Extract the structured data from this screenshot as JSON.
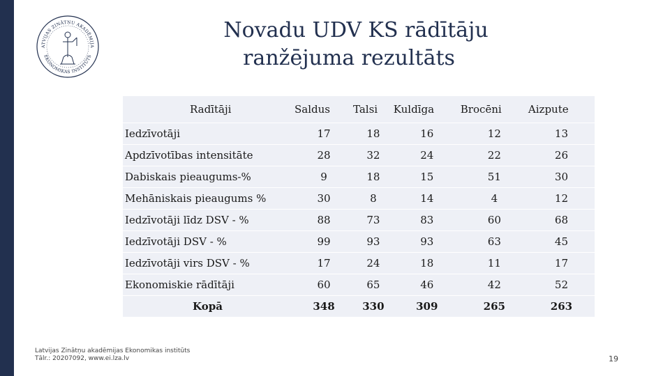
{
  "slide": {
    "title_line1": "Novadu UDV KS rādītāju",
    "title_line2": "ranžējuma rezultāts",
    "page_number": "19",
    "footer_line1": "Latvijas Zinātņu akadēmijas Ekonomikas institūts",
    "footer_line2": "Tālr.: 20207092, www.ei.lza.lv",
    "logo_text": "LATVIJAS ZINĀTŅU AKADĒMIJAS EKONOMIKAS INSTITŪTS",
    "accent_color": "#22304f",
    "row_shade": "#eef0f6"
  },
  "table": {
    "header_label": "Radītāji",
    "columns": [
      "Saldus",
      "Talsi",
      "Kuldīga",
      "Brocēni",
      "Aizpute"
    ],
    "rows": [
      {
        "label": "Iedzīvotāji",
        "values": [
          "17",
          "18",
          "16",
          "12",
          "13"
        ]
      },
      {
        "label": "Apdzīvotības intensitāte",
        "values": [
          "28",
          "32",
          "24",
          "22",
          "26"
        ]
      },
      {
        "label": "Dabiskais pieaugums-%",
        "values": [
          "9",
          "18",
          "15",
          "51",
          "30"
        ]
      },
      {
        "label": "Mehāniskais pieaugums %",
        "values": [
          "30",
          "8",
          "14",
          "4",
          "12"
        ]
      },
      {
        "label": "Iedzīvotāji līdz DSV - %",
        "values": [
          "88",
          "73",
          "83",
          "60",
          "68"
        ]
      },
      {
        "label": "Iedzīvotāji  DSV - %",
        "values": [
          "99",
          "93",
          "93",
          "63",
          "45"
        ]
      },
      {
        "label": "Iedzīvotāji virs DSV - %",
        "values": [
          "17",
          "24",
          "18",
          "11",
          "17"
        ]
      },
      {
        "label": "Ekonomiskie rādītāji",
        "values": [
          "60",
          "65",
          "46",
          "42",
          "52"
        ]
      }
    ],
    "total_label": "Kopā",
    "totals": [
      "348",
      "330",
      "309",
      "265",
      "263"
    ]
  }
}
